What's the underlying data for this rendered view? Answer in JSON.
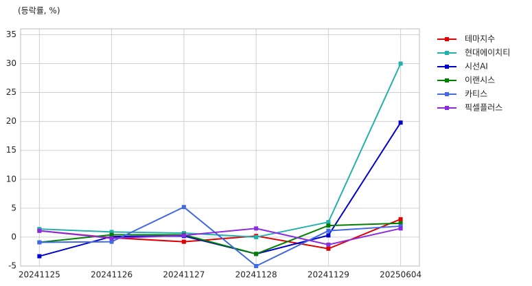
{
  "chart_data": {
    "type": "line",
    "y_label": "(등락률, %)",
    "categories": [
      "20241125",
      "20241126",
      "20241127",
      "20241128",
      "20241129",
      "20250604"
    ],
    "series": [
      {
        "name": "테마지수",
        "color": "#e00000",
        "values": [
          1.1,
          -0.1,
          -0.8,
          0.2,
          -2.0,
          3.1
        ]
      },
      {
        "name": "현대에이치티",
        "color": "#20b2aa",
        "values": [
          1.4,
          0.9,
          0.7,
          0.0,
          2.6,
          30.0
        ]
      },
      {
        "name": "시선AI",
        "color": "#0000cd",
        "values": [
          -3.3,
          0.1,
          0.2,
          -2.9,
          0.3,
          19.8
        ]
      },
      {
        "name": "이랜시스",
        "color": "#008000",
        "values": [
          -0.9,
          0.4,
          0.4,
          -2.9,
          2.0,
          2.4
        ]
      },
      {
        "name": "카티스",
        "color": "#4169e1",
        "values": [
          -0.9,
          -0.8,
          5.2,
          -5.0,
          1.1,
          1.9
        ]
      },
      {
        "name": "픽셀플러스",
        "color": "#8a2be2",
        "values": [
          1.1,
          -0.2,
          0.3,
          1.5,
          -1.3,
          1.5
        ]
      }
    ],
    "ylim": [
      -5,
      36
    ],
    "yticks": [
      -5,
      0,
      5,
      10,
      15,
      20,
      25,
      30,
      35
    ],
    "grid": true,
    "legend": "right"
  }
}
